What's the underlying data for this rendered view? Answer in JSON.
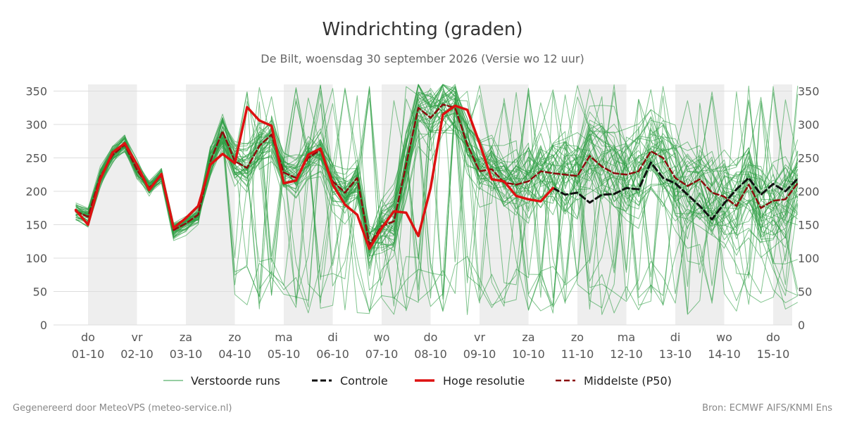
{
  "title": "Windrichting (graden)",
  "subtitle": "De Bilt, woensdag 30 september 2026 (Versie wo 12 uur)",
  "footer_left": "Gegenereerd door MeteoVPS (meteo-service.nl)",
  "footer_right": "Bron: ECMWF AIFS/KNMI Ens",
  "colors": {
    "ensemble": "#2e9e44",
    "control": "#111111",
    "high_res": "#dd1111",
    "median": "#8b0d0d",
    "grid": "#dddddd",
    "weekend_band": "#eeeeee"
  },
  "chart_data": {
    "type": "line",
    "title": "Windrichting (graden)",
    "subtitle": "De Bilt, woensdag 30 september 2026 (Versie wo 12 uur)",
    "ylim": [
      0,
      360
    ],
    "xlim": [
      -0.8,
      14.6
    ],
    "yticks": [
      0,
      50,
      100,
      150,
      200,
      250,
      300,
      350
    ],
    "x_ticks": [
      {
        "x": 0,
        "day": "do",
        "date": "01-10"
      },
      {
        "x": 1,
        "day": "vr",
        "date": "02-10"
      },
      {
        "x": 2,
        "day": "za",
        "date": "03-10"
      },
      {
        "x": 3,
        "day": "zo",
        "date": "04-10"
      },
      {
        "x": 4,
        "day": "ma",
        "date": "05-10"
      },
      {
        "x": 5,
        "day": "di",
        "date": "06-10"
      },
      {
        "x": 6,
        "day": "wo",
        "date": "07-10"
      },
      {
        "x": 7,
        "day": "do",
        "date": "08-10"
      },
      {
        "x": 8,
        "day": "vr",
        "date": "09-10"
      },
      {
        "x": 9,
        "day": "za",
        "date": "10-10"
      },
      {
        "x": 10,
        "day": "zo",
        "date": "11-10"
      },
      {
        "x": 11,
        "day": "ma",
        "date": "12-10"
      },
      {
        "x": 12,
        "day": "di",
        "date": "13-10"
      },
      {
        "x": 13,
        "day": "wo",
        "date": "14-10"
      },
      {
        "x": 14,
        "day": "do",
        "date": "15-10"
      }
    ],
    "shaded_bands": [
      [
        0,
        1
      ],
      [
        2,
        3
      ],
      [
        4,
        5
      ],
      [
        6,
        7
      ],
      [
        8,
        9
      ],
      [
        10,
        11
      ],
      [
        12,
        13
      ],
      [
        14,
        14.5
      ]
    ],
    "grid": true,
    "legend_position": "bottom",
    "series": [
      {
        "name": "Hoge resolutie",
        "x": [
          -0.25,
          -0.0,
          0.25,
          0.5,
          0.75,
          1.0,
          1.25,
          1.5,
          1.75,
          2.0,
          2.25,
          2.5,
          2.75,
          3.0,
          3.25,
          3.5,
          3.75,
          4.0,
          4.25,
          4.5,
          4.75,
          5.0,
          5.25,
          5.5,
          5.75,
          6.0,
          6.25,
          6.5,
          6.75,
          7.0,
          7.25,
          7.5,
          7.75,
          8.0,
          8.25,
          8.5,
          8.75,
          9.0,
          9.25,
          9.5
        ],
        "y": [
          172,
          150,
          218,
          258,
          272,
          240,
          202,
          226,
          145,
          160,
          178,
          240,
          256,
          242,
          326,
          306,
          298,
          212,
          216,
          255,
          264,
          210,
          180,
          165,
          114,
          145,
          170,
          168,
          133,
          205,
          315,
          328,
          322,
          272,
          218,
          215,
          193,
          188,
          185,
          205
        ]
      },
      {
        "name": "Controle",
        "x": [
          9.5,
          9.75,
          10.0,
          10.25,
          10.5,
          10.75,
          11.0,
          11.25,
          11.5,
          11.75,
          12.0,
          12.25,
          12.5,
          12.75,
          13.0,
          13.25,
          13.5,
          13.75,
          14.0,
          14.25,
          14.5
        ],
        "y": [
          205,
          195,
          198,
          183,
          195,
          196,
          205,
          203,
          243,
          220,
          212,
          195,
          178,
          158,
          182,
          203,
          220,
          195,
          211,
          200,
          219
        ]
      },
      {
        "name": "Middelste (P50)",
        "x": [
          -0.25,
          -0.0,
          0.25,
          0.5,
          0.75,
          1.0,
          1.25,
          1.5,
          1.75,
          2.0,
          2.25,
          2.5,
          2.75,
          3.0,
          3.25,
          3.5,
          3.75,
          4.0,
          4.25,
          4.5,
          4.75,
          5.0,
          5.25,
          5.5,
          5.75,
          6.0,
          6.25,
          6.5,
          6.75,
          7.0,
          7.25,
          7.5,
          7.75,
          8.0,
          8.25,
          8.5,
          8.75,
          9.0,
          9.25,
          9.5,
          9.75,
          10.0,
          10.25,
          10.5,
          10.75,
          11.0,
          11.25,
          11.5,
          11.75,
          12.0,
          12.25,
          12.5,
          12.75,
          13.0,
          13.25,
          13.5,
          13.75,
          14.0,
          14.25,
          14.5
        ],
        "y": [
          170,
          162,
          222,
          254,
          270,
          232,
          205,
          224,
          142,
          152,
          165,
          245,
          290,
          245,
          235,
          268,
          285,
          228,
          220,
          250,
          262,
          215,
          198,
          220,
          120,
          148,
          155,
          240,
          325,
          310,
          330,
          325,
          270,
          230,
          233,
          213,
          210,
          215,
          230,
          227,
          225,
          223,
          253,
          237,
          227,
          225,
          230,
          260,
          250,
          220,
          208,
          218,
          198,
          192,
          178,
          210,
          175,
          186,
          188,
          212
        ]
      },
      {
        "name": "Verstoorde runs",
        "note_members": 50
      }
    ]
  },
  "legend": {
    "ensemble": "Verstoorde runs",
    "control": "Controle",
    "high_res": "Hoge resolutie",
    "median": "Middelste (P50)"
  }
}
